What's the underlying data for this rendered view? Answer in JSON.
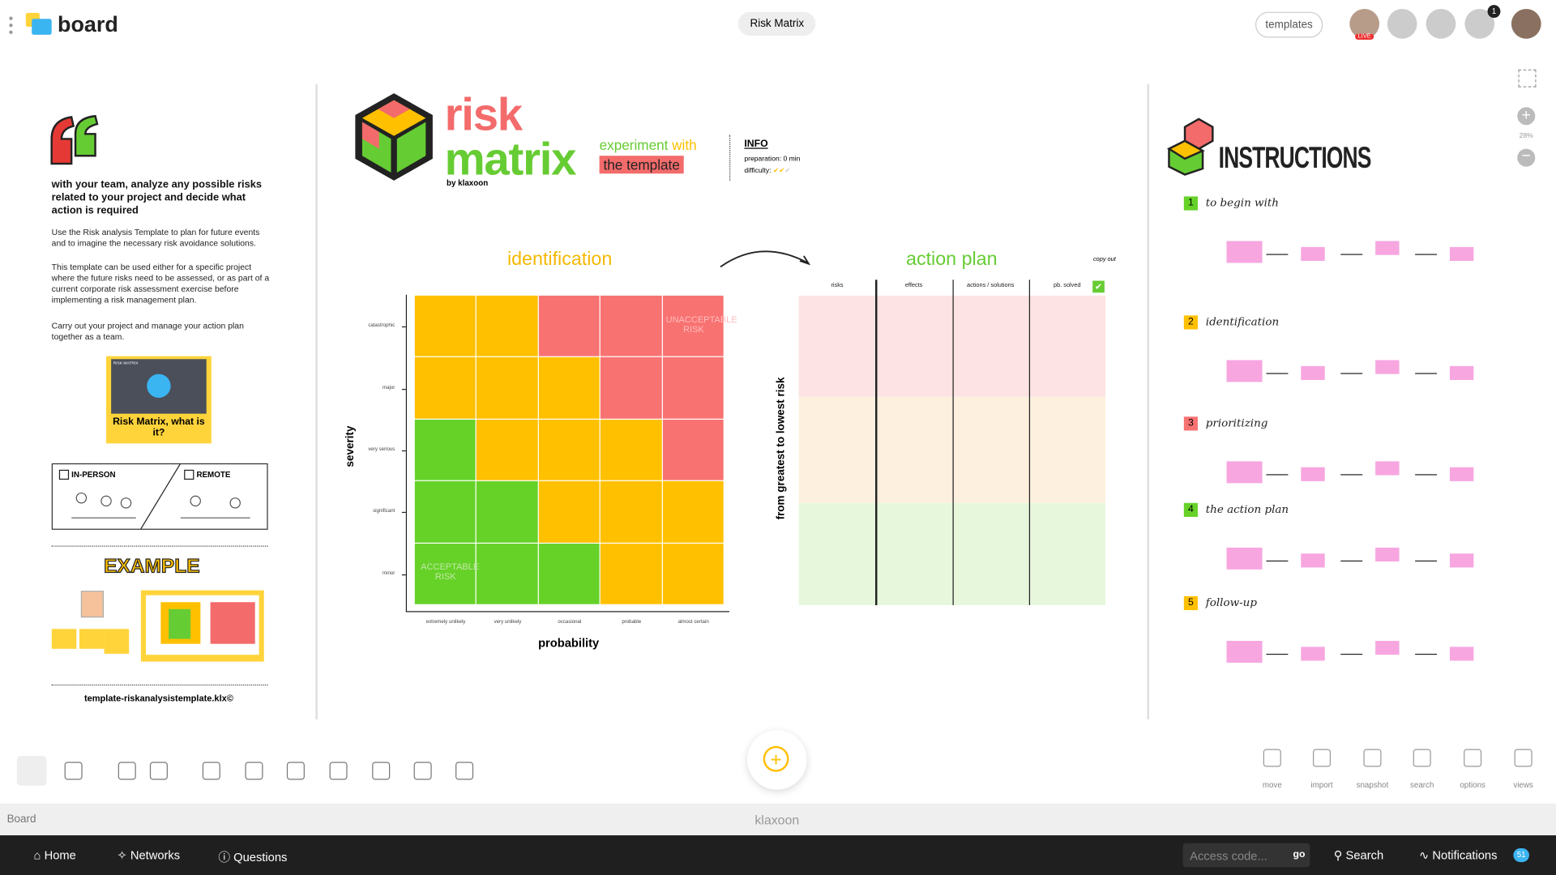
{
  "header": {
    "app_name": "board",
    "board_title": "Risk Matrix",
    "templates_button": "templates",
    "participants_badge": "1",
    "live_label": "LIVE"
  },
  "zoom": {
    "level": "28%"
  },
  "left_panel": {
    "intro_heading": "with your team, analyze any possible risks related to your project and decide what action is required",
    "paragraphs": [
      "Use the Risk analysis Template to plan for future events and to imagine the necessary risk avoidance solutions.",
      "This template can be used either for a specific project where the future risks need to be assessed, or as part of a current corporate risk assessment exercise before implementing a risk management plan.",
      "Carry out your project and manage your action plan together as a team."
    ],
    "video_tag": "RISK MATRIX",
    "video_caption": "Risk Matrix, what is it?",
    "modes": [
      "IN-PERSON",
      "REMOTE"
    ],
    "example_title": "EXAMPLE",
    "file_name": "template-riskanalysistemplate.klx©"
  },
  "template_header": {
    "title_line1": "risk",
    "title_line2": "matrix",
    "byline": "by klaxoon",
    "cta_line1_a": "experiment",
    "cta_line1_b": "with",
    "cta_line2": "the template",
    "info_title": "INFO",
    "preparation": "preparation: 0 min",
    "difficulty_label": "difficulty:"
  },
  "identification": {
    "title": "identification",
    "y_axis_label": "severity",
    "x_axis_label": "probability",
    "severity_levels": [
      "catastrophic",
      "major",
      "very serious",
      "significant",
      "minor"
    ],
    "probability_levels": [
      "extremely unlikely",
      "very unlikely",
      "occasional",
      "probable",
      "almost certain"
    ],
    "zone_labels": [
      "UNACCEPTABLE RISK",
      "ACCEPTABLE RISK"
    ]
  },
  "action_plan": {
    "title": "action plan",
    "side_label": "from greatest to lowest risk",
    "columns": [
      "risks",
      "effects",
      "actions / solutions",
      "pb. solved"
    ],
    "copy_out": "copy out"
  },
  "instructions": {
    "title": "INSTRUCTIONS",
    "steps": [
      {
        "number": "1",
        "title": "to begin with"
      },
      {
        "number": "2",
        "title": "identification"
      },
      {
        "number": "3",
        "title": "prioritizing"
      },
      {
        "number": "4",
        "title": "the action plan"
      },
      {
        "number": "5",
        "title": "follow-up"
      }
    ]
  },
  "toolbar": {
    "tools": [
      "move",
      "import",
      "snapshot",
      "search",
      "options",
      "views"
    ]
  },
  "footer": {
    "board_label": "Board",
    "brand": "klaxoon"
  },
  "nav": {
    "items": [
      "Home",
      "Networks",
      "Questions"
    ],
    "access_placeholder": "Access code...",
    "go": "go",
    "search": "Search",
    "notifications": "Notifications",
    "notifications_badge": "51"
  }
}
